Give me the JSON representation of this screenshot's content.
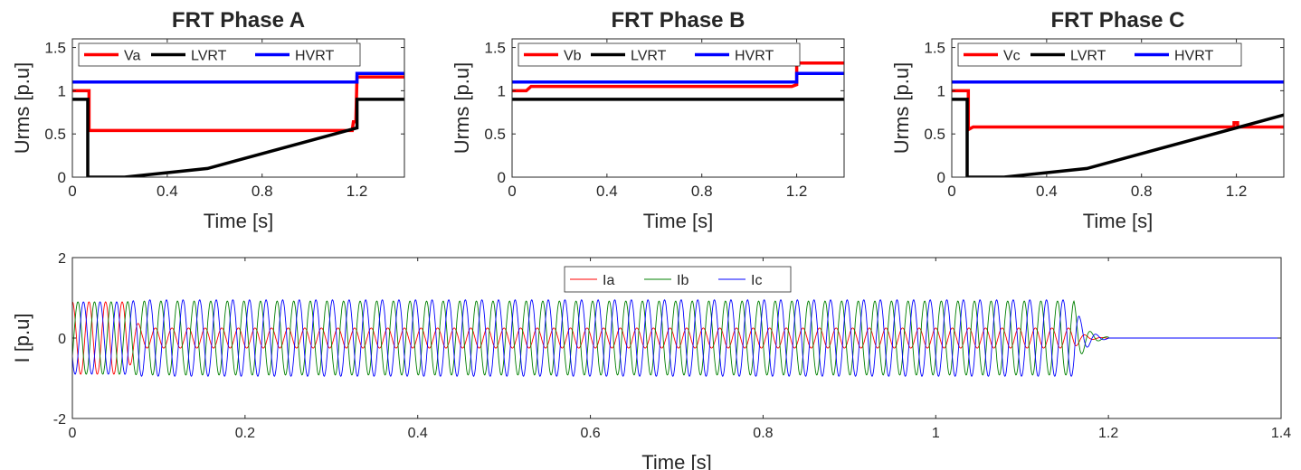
{
  "chart_data": [
    {
      "type": "line",
      "title": "FRT Phase A",
      "xlabel": "Time [s]",
      "ylabel": "Urms [p.u]",
      "xlim": [
        0,
        1.4
      ],
      "ylim": [
        0,
        1.6
      ],
      "xticks": [
        "0",
        "0.4",
        "0.8",
        "1.2"
      ],
      "xtick_values": [
        0,
        0.4,
        0.8,
        1.2
      ],
      "yticks": [
        "0",
        "0.5",
        "1",
        "1.5"
      ],
      "ytick_values": [
        0,
        0.5,
        1,
        1.5
      ],
      "legend": "top",
      "series": [
        {
          "name": "Va",
          "color": "#ff0000",
          "x": [
            0,
            0.07,
            0.07,
            1.18,
            1.185,
            1.195,
            1.2,
            1.4
          ],
          "y": [
            1,
            1,
            0.54,
            0.54,
            0.64,
            0.64,
            1.16,
            1.16
          ]
        },
        {
          "name": "LVRT",
          "color": "#000000",
          "x": [
            0,
            0.065,
            0.065,
            0.22,
            0.57,
            1.2,
            1.2,
            1.4
          ],
          "y": [
            0.9,
            0.9,
            0,
            0,
            0.1,
            0.57,
            0.9,
            0.9
          ]
        },
        {
          "name": "HVRT",
          "color": "#0000ff",
          "x": [
            0,
            1.2,
            1.2,
            1.4
          ],
          "y": [
            1.1,
            1.1,
            1.2,
            1.2
          ]
        }
      ]
    },
    {
      "type": "line",
      "title": "FRT Phase B",
      "xlabel": "Time [s]",
      "ylabel": "Urms [p.u]",
      "xlim": [
        0,
        1.4
      ],
      "ylim": [
        0,
        1.6
      ],
      "xticks": [
        "0",
        "0.4",
        "0.8",
        "1.2"
      ],
      "xtick_values": [
        0,
        0.4,
        0.8,
        1.2
      ],
      "yticks": [
        "0",
        "0.5",
        "1",
        "1.5"
      ],
      "ytick_values": [
        0,
        0.5,
        1,
        1.5
      ],
      "legend": "top",
      "series": [
        {
          "name": "Vb",
          "color": "#ff0000",
          "x": [
            0,
            0.06,
            0.08,
            1.18,
            1.2,
            1.2,
            1.4
          ],
          "y": [
            1,
            1,
            1.05,
            1.05,
            1.07,
            1.32,
            1.32
          ]
        },
        {
          "name": "LVRT",
          "color": "#000000",
          "x": [
            0,
            1.4
          ],
          "y": [
            0.9,
            0.9
          ]
        },
        {
          "name": "HVRT",
          "color": "#0000ff",
          "x": [
            0,
            1.2,
            1.2,
            1.4
          ],
          "y": [
            1.1,
            1.1,
            1.2,
            1.2
          ]
        }
      ]
    },
    {
      "type": "line",
      "title": "FRT Phase C",
      "xlabel": "Time [s]",
      "ylabel": "Urms [p.u]",
      "xlim": [
        0,
        1.4
      ],
      "ylim": [
        0,
        1.6
      ],
      "xticks": [
        "0",
        "0.4",
        "0.8",
        "1.2"
      ],
      "xtick_values": [
        0,
        0.4,
        0.8,
        1.2
      ],
      "yticks": [
        "0",
        "0.5",
        "1",
        "1.5"
      ],
      "ytick_values": [
        0,
        0.5,
        1,
        1.5
      ],
      "legend": "top",
      "series": [
        {
          "name": "Vc",
          "color": "#ff0000",
          "x": [
            0,
            0.07,
            0.07,
            0.09,
            1.19,
            1.19,
            1.205,
            1.205,
            1.4
          ],
          "y": [
            1,
            1,
            0.55,
            0.58,
            0.58,
            0.63,
            0.63,
            0.58,
            0.58
          ]
        },
        {
          "name": "LVRT",
          "color": "#000000",
          "x": [
            0,
            0.065,
            0.065,
            0.22,
            0.57,
            1.4
          ],
          "y": [
            0.9,
            0.9,
            0,
            0,
            0.1,
            0.72
          ]
        },
        {
          "name": "HVRT",
          "color": "#0000ff",
          "x": [
            0,
            1.4
          ],
          "y": [
            1.1,
            1.1
          ]
        }
      ]
    },
    {
      "type": "line",
      "title": "",
      "xlabel": "Time [s]",
      "ylabel": "I [p.u]",
      "xlim": [
        0,
        1.4
      ],
      "ylim": [
        -2,
        2
      ],
      "xticks": [
        "0",
        "0.2",
        "0.4",
        "0.6",
        "0.8",
        "1",
        "1.2",
        "1.4"
      ],
      "xtick_values": [
        0,
        0.2,
        0.4,
        0.6,
        0.8,
        1,
        1.2,
        1.4
      ],
      "yticks": [
        "-2",
        "0",
        "2"
      ],
      "ytick_values": [
        -2,
        0,
        2
      ],
      "legend": "top",
      "frequency_hz": 52,
      "fault_start_s": 0.06,
      "trip_s": 1.16,
      "zero_s": 1.2,
      "series": [
        {
          "name": "Ia",
          "color": "#ff0000",
          "phase_deg": 90,
          "amp_pre": 0.9,
          "amp_fault": 0.25
        },
        {
          "name": "Ib",
          "color": "#008000",
          "phase_deg": -30,
          "amp_pre": 0.9,
          "amp_fault": 0.92
        },
        {
          "name": "Ic",
          "color": "#0000ff",
          "phase_deg": 210,
          "amp_pre": 0.9,
          "amp_fault": 0.95
        }
      ]
    }
  ]
}
